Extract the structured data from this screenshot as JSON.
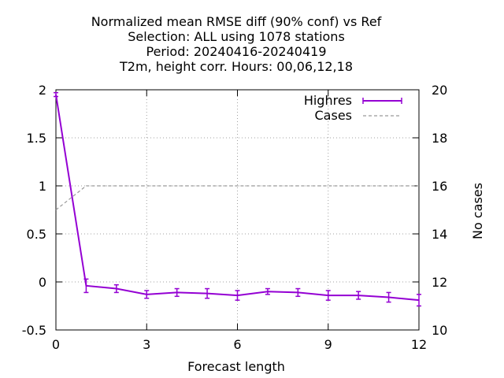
{
  "chart_data": {
    "type": "line",
    "title_lines": [
      "Normalized mean RMSE diff (90% conf) vs Ref",
      "Selection: ALL using  1078 stations",
      "Period: 20240416-20240419",
      "T2m, height corr.   Hours:  00,06,12,18"
    ],
    "xlabel": "Forecast length",
    "ylabel": "",
    "y2label": "No cases",
    "xlim": [
      0,
      12
    ],
    "ylim": [
      -0.5,
      2
    ],
    "y2lim": [
      10,
      20
    ],
    "xticks": [
      "0",
      "3",
      "6",
      "9",
      "12"
    ],
    "yticks": [
      "-0.5",
      "0",
      "0.5",
      "1",
      "1.5",
      "2"
    ],
    "y2ticks": [
      "10",
      "12",
      "14",
      "16",
      "18",
      "20"
    ],
    "grid": true,
    "legend_position": "top-right",
    "series": [
      {
        "name": "Highres",
        "axis": "y",
        "color": "#9400d3",
        "style": "line-errorbars",
        "x": [
          0,
          1,
          2,
          3,
          4,
          5,
          6,
          7,
          8,
          9,
          10,
          11,
          12
        ],
        "y": [
          1.95,
          -0.04,
          -0.07,
          -0.13,
          -0.11,
          -0.12,
          -0.14,
          -0.1,
          -0.11,
          -0.14,
          -0.14,
          -0.16,
          -0.19
        ],
        "err": [
          0.02,
          0.07,
          0.04,
          0.04,
          0.04,
          0.05,
          0.05,
          0.03,
          0.04,
          0.05,
          0.04,
          0.05,
          0.06
        ]
      },
      {
        "name": "Cases",
        "axis": "y2",
        "color": "#999999",
        "style": "dashed",
        "x": [
          0,
          1,
          2,
          3,
          4,
          5,
          6,
          7,
          8,
          9,
          10,
          11,
          12
        ],
        "y": [
          15,
          16,
          16,
          16,
          16,
          16,
          16,
          16,
          16,
          16,
          16,
          16,
          16
        ]
      }
    ]
  }
}
